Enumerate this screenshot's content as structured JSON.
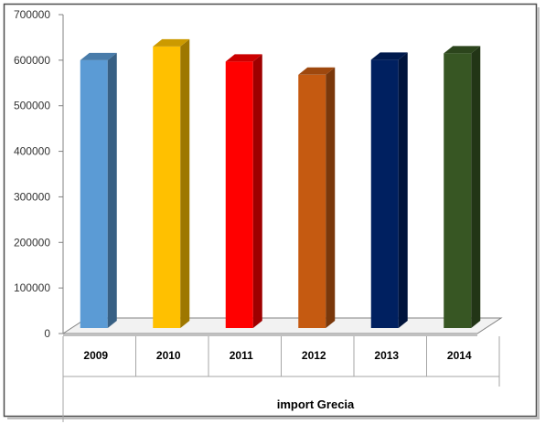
{
  "chart_data": {
    "type": "bar",
    "title": "",
    "xlabel": "import Grecia",
    "ylabel": "",
    "categories": [
      "2009",
      "2010",
      "2011",
      "2012",
      "2013",
      "2014"
    ],
    "values": [
      600000,
      630000,
      597000,
      568000,
      601000,
      615000
    ],
    "bar_colors": [
      "#5b9bd5",
      "#ffc000",
      "#ff0000",
      "#c55a11",
      "#002060",
      "#375623"
    ],
    "ylim": [
      0,
      700000
    ],
    "yticks": [
      0,
      100000,
      200000,
      300000,
      400000,
      500000,
      600000,
      700000
    ],
    "ytick_labels": [
      "0",
      "100000",
      "200000",
      "300000",
      "400000",
      "500000",
      "600000",
      "700000"
    ],
    "grid": false,
    "legend": false,
    "bar_style": "3d"
  }
}
